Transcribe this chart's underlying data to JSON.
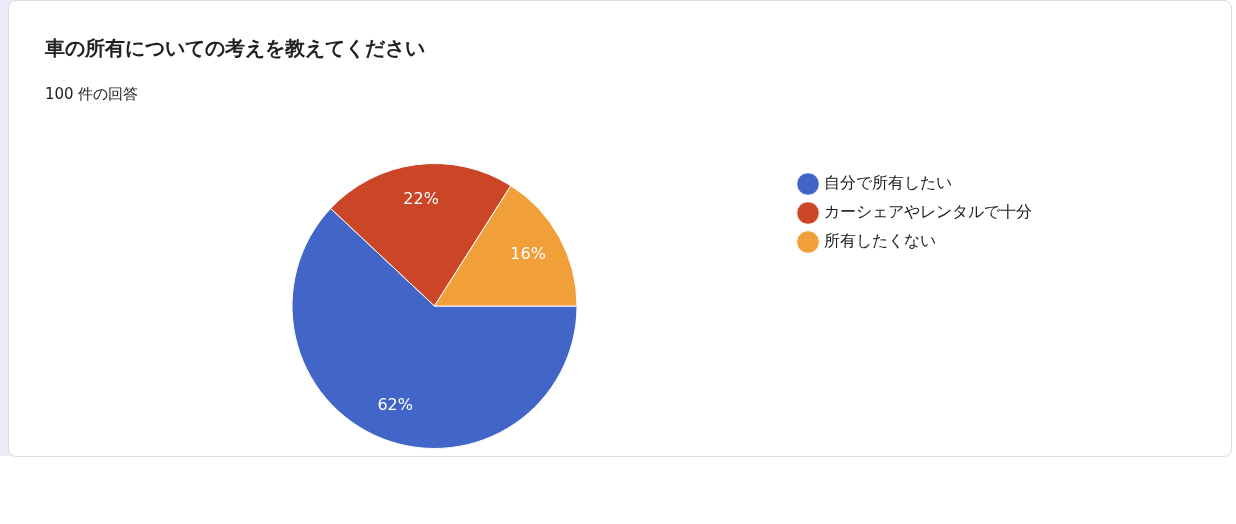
{
  "chart_data": {
    "type": "pie",
    "title": "車の所有についての考えを教えてください",
    "subtitle": "100 件の回答",
    "categories": [
      "自分で所有したい",
      "カーシェアやレンタルで十分",
      "所有したくない"
    ],
    "values": [
      62,
      22,
      16
    ],
    "colors": [
      "#4166c8",
      "#cb4627",
      "#f1a039"
    ],
    "value_labels": [
      "62%",
      "22%",
      "16%"
    ],
    "legend": "right"
  }
}
